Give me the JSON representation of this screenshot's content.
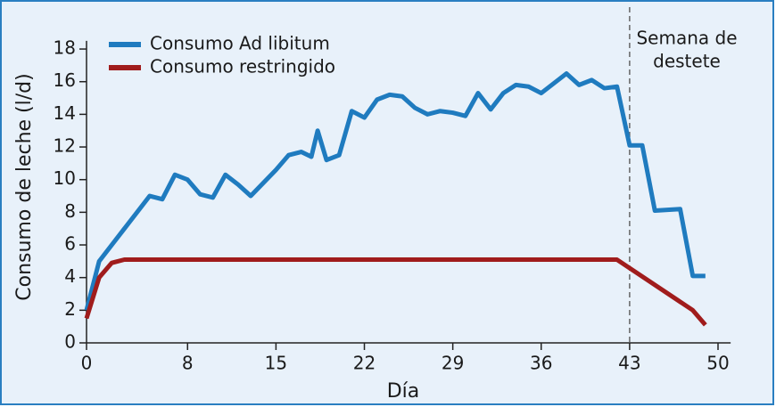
{
  "chart_data": {
    "type": "line",
    "xlabel": "Día",
    "ylabel": "Consumo de leche (l/d)",
    "xlim": [
      0,
      51
    ],
    "ylim": [
      0,
      18.5
    ],
    "xticks": [
      0,
      8,
      15,
      22,
      29,
      36,
      43,
      50
    ],
    "yticks": [
      0,
      2,
      4,
      6,
      8,
      10,
      12,
      14,
      16,
      18
    ],
    "legend": "upper left",
    "series": [
      {
        "name": "Consumo Ad libitum",
        "color": "#1f7bbf",
        "x": [
          0,
          1,
          2,
          3,
          4,
          5,
          6,
          7,
          8,
          9,
          10,
          11,
          12,
          13,
          14,
          15,
          16,
          17,
          17.8,
          18.3,
          19,
          20,
          21,
          22,
          23,
          24,
          25,
          26,
          27,
          28,
          29,
          30,
          31,
          32,
          33,
          34,
          35,
          36,
          37,
          38,
          39,
          40,
          41,
          42,
          43,
          44,
          45,
          47,
          48,
          49
        ],
        "values": [
          2.0,
          5.0,
          6.0,
          7.0,
          8.0,
          9.0,
          8.8,
          10.3,
          10.0,
          9.1,
          8.9,
          10.3,
          9.7,
          9.0,
          9.8,
          10.6,
          11.5,
          11.7,
          11.4,
          13.0,
          11.2,
          11.5,
          14.2,
          13.8,
          14.9,
          15.2,
          15.1,
          14.4,
          14.0,
          14.2,
          14.1,
          13.9,
          15.3,
          14.3,
          15.3,
          15.8,
          15.7,
          15.3,
          15.9,
          16.5,
          15.8,
          16.1,
          15.6,
          15.7,
          12.1,
          12.1,
          8.1,
          8.2,
          4.1,
          4.1
        ]
      },
      {
        "name": "Consumo restringido",
        "color": "#a01c1c",
        "x": [
          0,
          1,
          2,
          3,
          42,
          48,
          49
        ],
        "values": [
          1.5,
          4.0,
          4.9,
          5.1,
          5.1,
          2.0,
          1.1
        ]
      }
    ],
    "annotation": {
      "x": 43,
      "lines": [
        "Semana de",
        "destete"
      ]
    }
  }
}
